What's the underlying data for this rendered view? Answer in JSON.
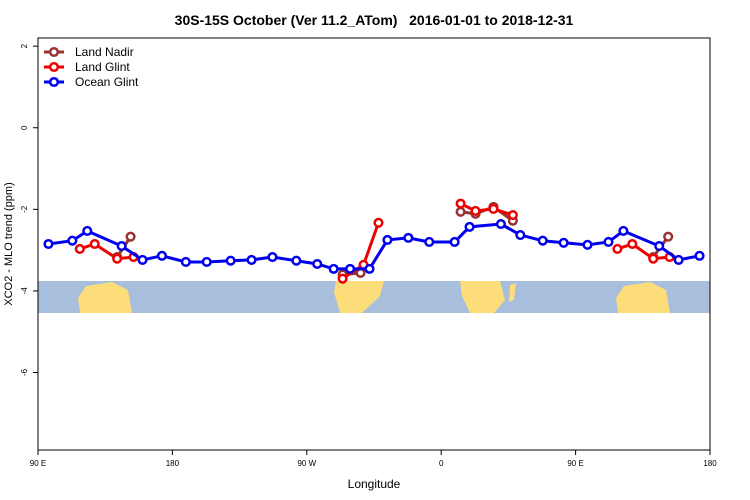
{
  "chart_data": {
    "type": "line",
    "title": "30S-15S October (Ver 11.2_ATom)   2016-01-01 to 2018-12-31",
    "x_label": "Longitude",
    "y_label": "XCO2 - MLO trend (ppm)",
    "xlim": [
      90,
      540
    ],
    "ylim": [
      -7.9,
      2.2
    ],
    "xticks": [
      {
        "value": 90,
        "label": "90 E"
      },
      {
        "value": 180,
        "label": "180"
      },
      {
        "value": 270,
        "label": "90 W"
      },
      {
        "value": 360,
        "label": "0"
      },
      {
        "value": 450,
        "label": "90 E"
      },
      {
        "value": 540,
        "label": "180"
      }
    ],
    "yticks": [
      -6,
      -4,
      -2,
      0,
      2
    ],
    "legend": "top-left",
    "series": [
      {
        "name": "Land Nadir",
        "color": "#993333",
        "x": [
          143,
          152,
          null,
          294,
          306,
          null,
          373,
          383,
          395,
          408,
          null,
          502,
          512
        ],
        "values": [
          -3.17,
          -2.67,
          null,
          -3.6,
          -3.56,
          null,
          -2.06,
          -2.11,
          -1.94,
          -2.28,
          null,
          -3.17,
          -2.67
        ]
      },
      {
        "name": "Land Glint",
        "color": "#ee0000",
        "x": [
          118,
          128,
          143,
          154,
          null,
          294,
          308,
          318,
          null,
          373,
          383,
          395,
          408,
          null,
          478,
          488,
          502,
          513
        ],
        "values": [
          -2.97,
          -2.85,
          -3.21,
          -3.17,
          null,
          -3.7,
          -3.36,
          -2.33,
          null,
          -1.86,
          -2.04,
          -1.99,
          -2.14,
          null,
          -2.97,
          -2.85,
          -3.21,
          -3.17
        ]
      },
      {
        "name": "Ocean Glint",
        "color": "#0000ee",
        "x": [
          97,
          113,
          123,
          146,
          160,
          173,
          189,
          203,
          219,
          233,
          247,
          263,
          277,
          288,
          299,
          312,
          324,
          338,
          352,
          369,
          379,
          400,
          413,
          428,
          442,
          458,
          472,
          482,
          506,
          519,
          533
        ],
        "values": [
          -2.85,
          -2.77,
          -2.53,
          -2.9,
          -3.24,
          -3.14,
          -3.29,
          -3.29,
          -3.26,
          -3.24,
          -3.17,
          -3.26,
          -3.34,
          -3.46,
          -3.46,
          -3.46,
          -2.75,
          -2.7,
          -2.8,
          -2.8,
          -2.43,
          -2.36,
          -2.63,
          -2.77,
          -2.82,
          -2.87,
          -2.8,
          -2.53,
          -2.9,
          -3.24,
          -3.14
        ]
      }
    ]
  }
}
